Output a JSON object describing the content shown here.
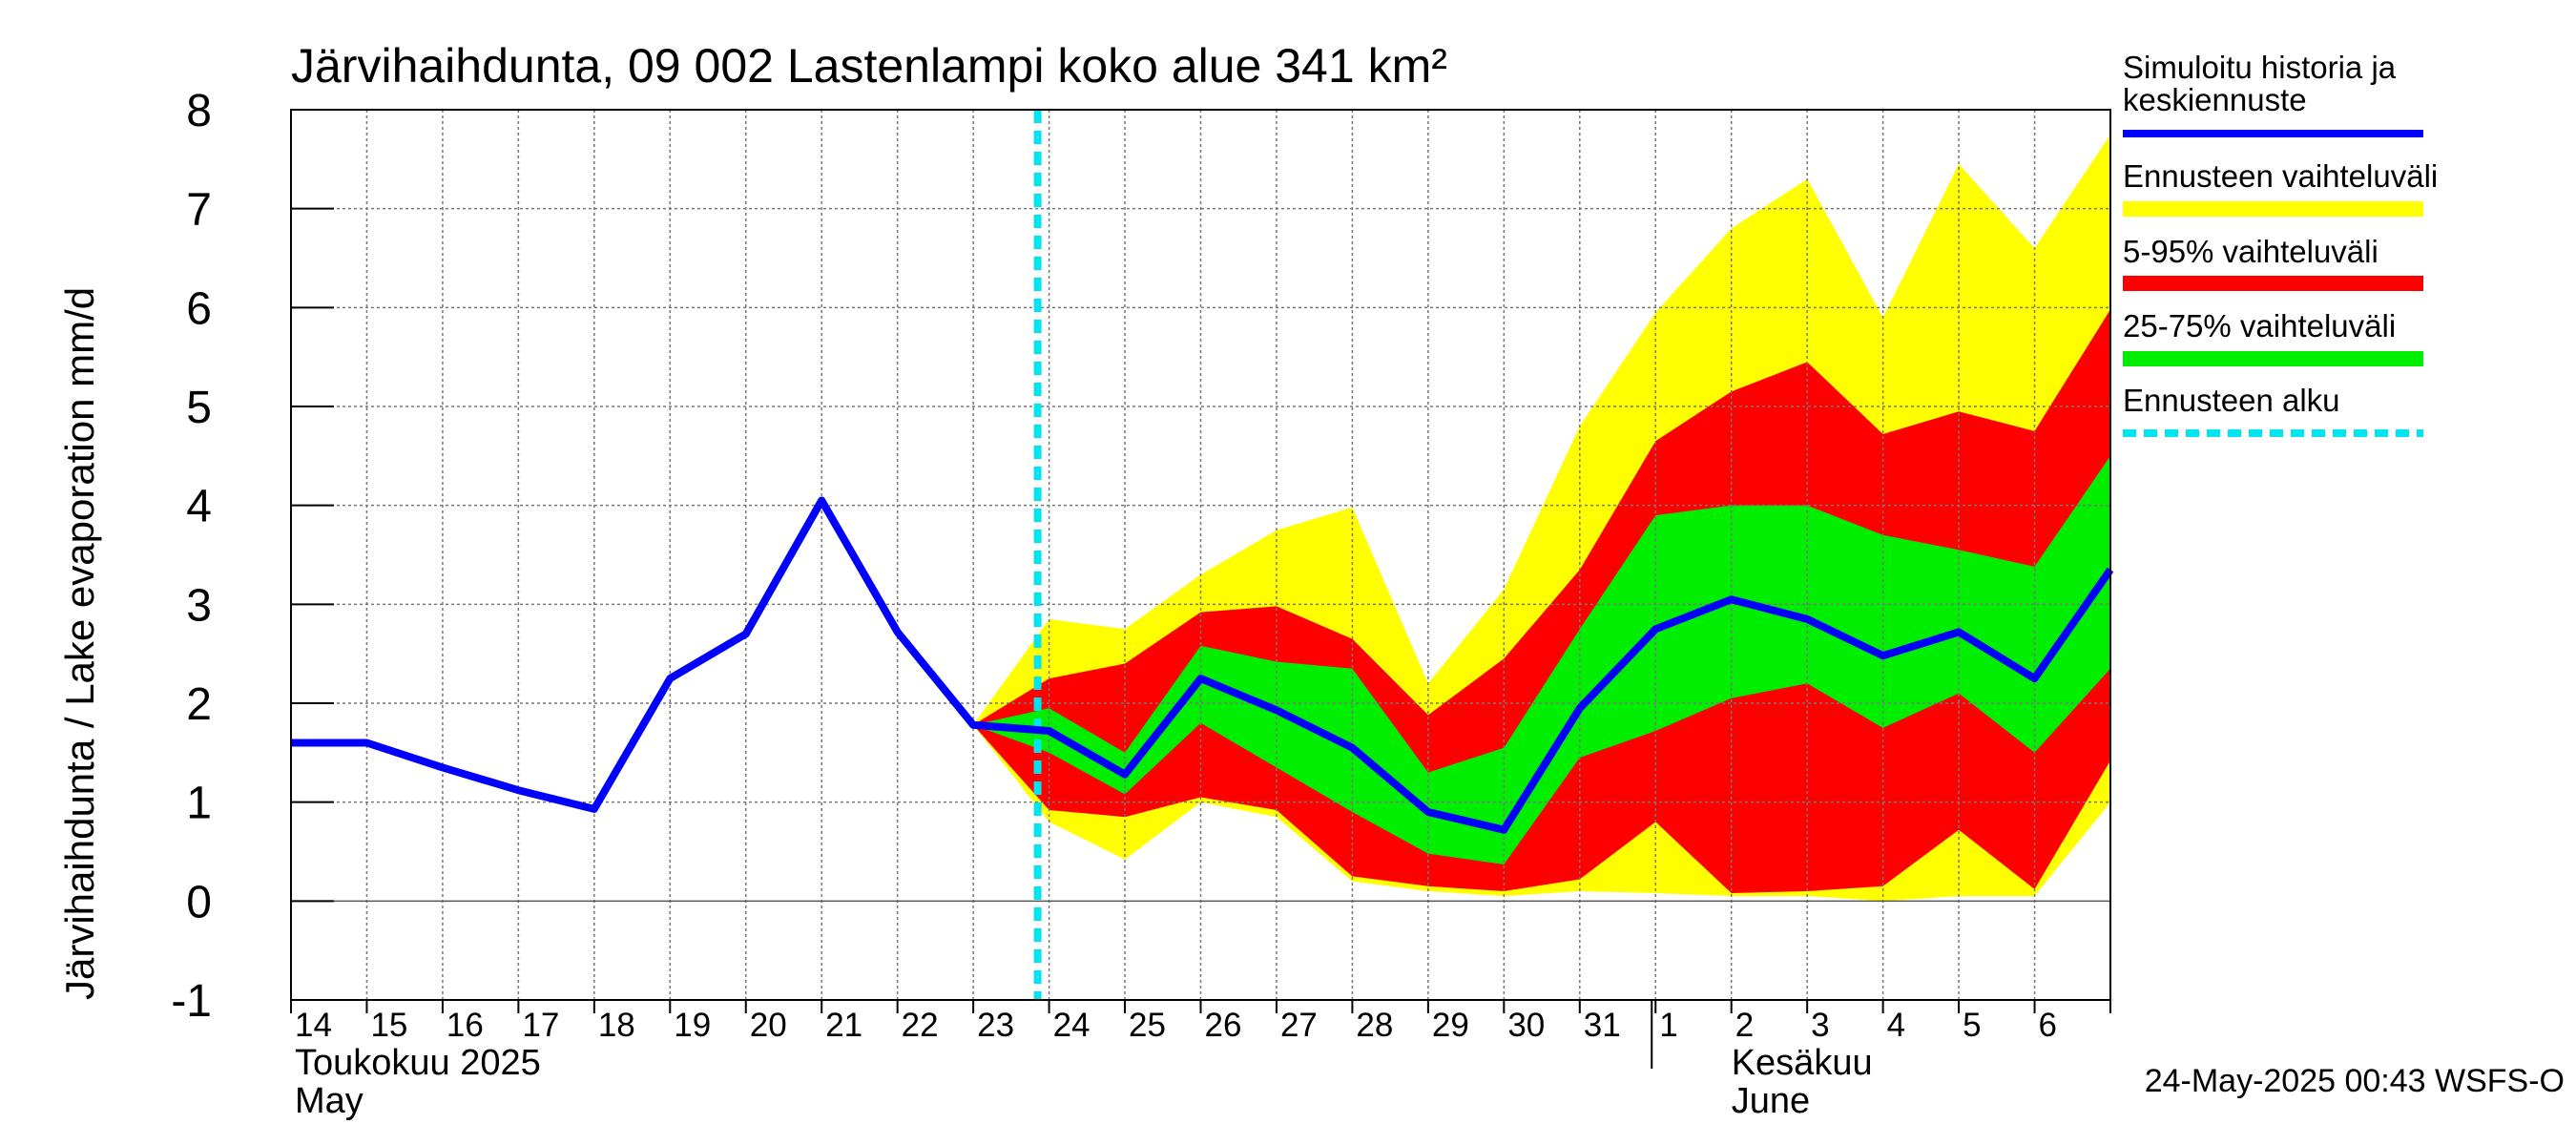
{
  "chart_data": {
    "type": "area",
    "title": "Järvihaihdunta, 09 002 Lastenlampi koko alue 341 km²",
    "ylabel": "Järvihaihdunta / Lake evaporation   mm/d",
    "ylim": [
      -1,
      8
    ],
    "yticks": [
      -1,
      0,
      1,
      2,
      3,
      4,
      5,
      6,
      7,
      8
    ],
    "grid": true,
    "x": [
      "2025-05-14",
      "2025-05-15",
      "2025-05-16",
      "2025-05-17",
      "2025-05-18",
      "2025-05-19",
      "2025-05-20",
      "2025-05-21",
      "2025-05-22",
      "2025-05-23",
      "2025-05-24",
      "2025-05-25",
      "2025-05-26",
      "2025-05-27",
      "2025-05-28",
      "2025-05-29",
      "2025-05-30",
      "2025-05-31",
      "2025-06-01",
      "2025-06-02",
      "2025-06-03",
      "2025-06-04",
      "2025-06-05",
      "2025-06-06",
      "2025-06-07"
    ],
    "day_labels": [
      "14",
      "15",
      "16",
      "17",
      "18",
      "19",
      "20",
      "21",
      "22",
      "23",
      "24",
      "25",
      "26",
      "27",
      "28",
      "29",
      "30",
      "31",
      "1",
      "2",
      "3",
      "4",
      "5",
      "6"
    ],
    "month_labels": [
      {
        "fi": "Toukokuu  2025",
        "en": "May"
      },
      {
        "fi": "Kesäkuu",
        "en": "June"
      }
    ],
    "forecast_start": "2025-05-24",
    "series": [
      {
        "name": "Simuloitu historia ja keskiennuste",
        "color": "#0000ff",
        "values": [
          1.6,
          1.6,
          1.35,
          1.12,
          0.93,
          2.25,
          2.7,
          4.05,
          2.72,
          1.78,
          1.72,
          1.28,
          2.25,
          1.93,
          1.55,
          0.9,
          0.72,
          1.95,
          2.75,
          3.05,
          2.85,
          2.48,
          2.72,
          2.25,
          3.35
        ]
      },
      {
        "name": "Ennusteen vaihteluväli",
        "color": "#ffff00",
        "upper": [
          null,
          null,
          null,
          null,
          null,
          null,
          null,
          null,
          null,
          1.78,
          2.85,
          2.75,
          3.3,
          3.75,
          3.98,
          2.2,
          3.15,
          4.8,
          5.95,
          6.8,
          7.3,
          5.9,
          7.45,
          6.6,
          7.75
        ],
        "lower": [
          null,
          null,
          null,
          null,
          null,
          null,
          null,
          null,
          null,
          1.78,
          0.8,
          0.42,
          1.0,
          0.85,
          0.2,
          0.1,
          0.05,
          0.1,
          0.08,
          0.05,
          0.05,
          0.0,
          0.05,
          0.05,
          1.0
        ]
      },
      {
        "name": "5-95% vaihteluväli",
        "color": "#ff0000",
        "upper": [
          null,
          null,
          null,
          null,
          null,
          null,
          null,
          null,
          null,
          1.78,
          2.25,
          2.4,
          2.92,
          2.98,
          2.65,
          1.88,
          2.45,
          3.35,
          4.65,
          5.15,
          5.45,
          4.72,
          4.95,
          4.75,
          5.98
        ],
        "lower": [
          null,
          null,
          null,
          null,
          null,
          null,
          null,
          null,
          null,
          1.78,
          0.92,
          0.85,
          1.05,
          0.92,
          0.25,
          0.15,
          0.1,
          0.22,
          0.8,
          0.08,
          0.1,
          0.15,
          0.72,
          0.12,
          1.42
        ]
      },
      {
        "name": "25-75% vaihteluväli",
        "color": "#00ee00",
        "upper": [
          null,
          null,
          null,
          null,
          null,
          null,
          null,
          null,
          null,
          1.78,
          1.95,
          1.5,
          2.58,
          2.42,
          2.35,
          1.3,
          1.55,
          2.75,
          3.9,
          4.0,
          4.0,
          3.7,
          3.55,
          3.38,
          4.5
        ],
        "lower": [
          null,
          null,
          null,
          null,
          null,
          null,
          null,
          null,
          null,
          1.78,
          1.5,
          1.08,
          1.8,
          1.35,
          0.9,
          0.48,
          0.37,
          1.45,
          1.72,
          2.05,
          2.2,
          1.75,
          2.1,
          1.5,
          2.35
        ]
      },
      {
        "name": "Ennusteen alku",
        "color": "#00e5ee"
      }
    ]
  },
  "timestamp": "24-May-2025 00:43 WSFS-O"
}
